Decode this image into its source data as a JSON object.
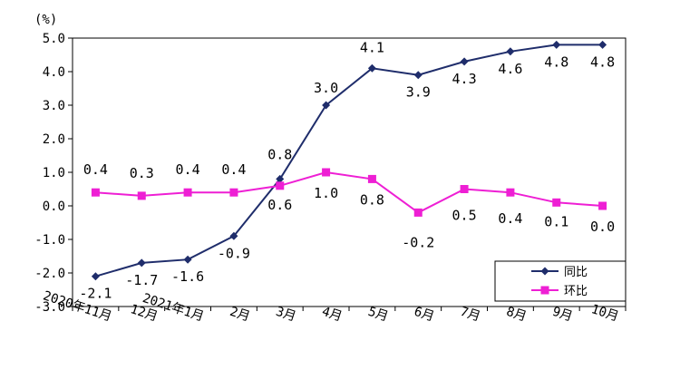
{
  "chart_data": {
    "type": "line",
    "unit_label": "(%)",
    "categories": [
      "2020年11月",
      "12月",
      "2021年1月",
      "2月",
      "3月",
      "4月",
      "5月",
      "6月",
      "7月",
      "8月",
      "9月",
      "10月"
    ],
    "ylim": [
      -3.0,
      5.0
    ],
    "yticks": [
      "5.0",
      "4.0",
      "3.0",
      "2.0",
      "1.0",
      "0.0",
      "-1.0",
      "-2.0",
      "-3.0"
    ],
    "grid": false,
    "legend_position": "bottom-right",
    "series": [
      {
        "name": "同比",
        "color": "#1f2d6b",
        "marker": "diamond",
        "values": [
          -2.1,
          -1.7,
          -1.6,
          -0.9,
          0.8,
          3.0,
          4.1,
          3.9,
          4.3,
          4.6,
          4.8,
          4.8
        ],
        "labels": [
          "-2.1",
          "-1.7",
          "-1.6",
          "-0.9",
          "0.8",
          "3.0",
          "4.1",
          "3.9",
          "4.3",
          "4.6",
          "4.8",
          "4.8"
        ]
      },
      {
        "name": "环比",
        "color": "#ee1fd4",
        "marker": "square",
        "values": [
          0.4,
          0.3,
          0.4,
          0.4,
          0.6,
          1.0,
          0.8,
          -0.2,
          0.5,
          0.4,
          0.1,
          0.0
        ],
        "labels": [
          "0.4",
          "0.3",
          "0.4",
          "0.4",
          "0.6",
          "1.0",
          "0.8",
          "-0.2",
          "0.5",
          "0.4",
          "0.1",
          "0.0"
        ]
      }
    ]
  }
}
